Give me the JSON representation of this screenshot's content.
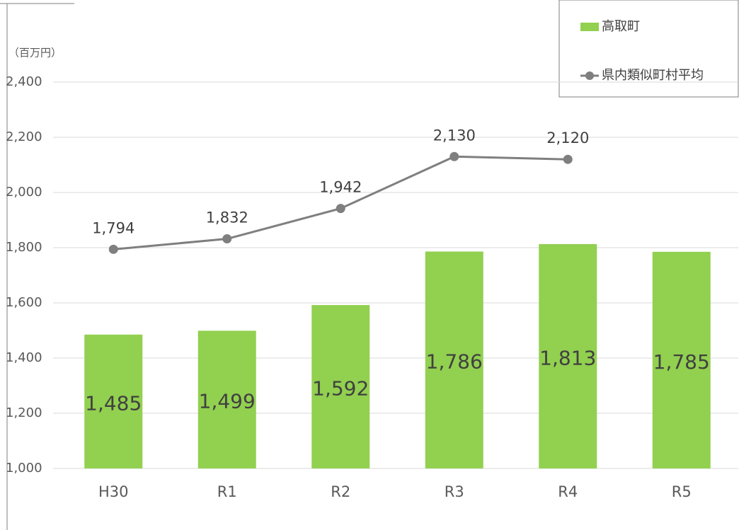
{
  "chart_data": {
    "type": "bar",
    "y_axis_label": "（百万円）",
    "categories": [
      "H30",
      "R1",
      "R2",
      "R3",
      "R4",
      "R5"
    ],
    "series": [
      {
        "name": "高取町",
        "type": "bar",
        "color": "#92d050",
        "values": [
          1485,
          1499,
          1592,
          1786,
          1813,
          1785
        ],
        "value_labels": [
          "1,485",
          "1,499",
          "1,592",
          "1,786",
          "1,813",
          "1,785"
        ]
      },
      {
        "name": "県内類似町村平均",
        "type": "line",
        "color": "#7f7f7f",
        "values": [
          1794,
          1832,
          1942,
          2130,
          2120,
          null
        ],
        "value_labels": [
          "1,794",
          "1,832",
          "1,942",
          "2,130",
          "2,120",
          null
        ]
      }
    ],
    "ylim": [
      1000,
      2400
    ],
    "yticks": [
      {
        "value": 1000,
        "label": "1,000"
      },
      {
        "value": 1200,
        "label": "1,200"
      },
      {
        "value": 1400,
        "label": "1,400"
      },
      {
        "value": 1600,
        "label": "1,600"
      },
      {
        "value": 1800,
        "label": "1,800"
      },
      {
        "value": 2000,
        "label": "2,000"
      },
      {
        "value": 2200,
        "label": "2,200"
      },
      {
        "value": 2400,
        "label": "2,400"
      }
    ],
    "grid": true,
    "legend": "top-right"
  }
}
